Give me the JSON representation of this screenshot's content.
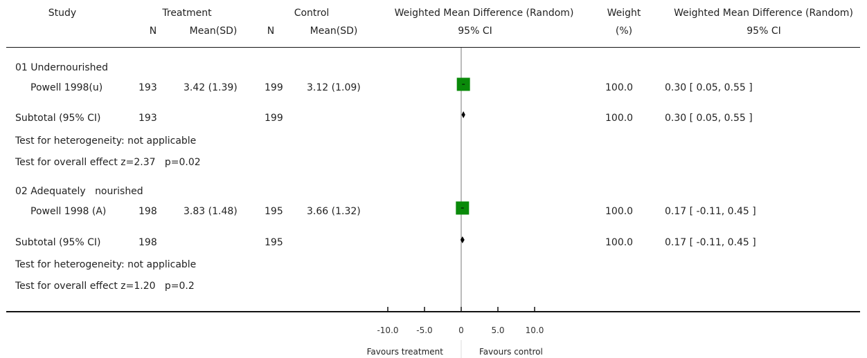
{
  "headers": {
    "study": "Study",
    "treatment": "Treatment",
    "control": "Control",
    "wmd": "Weighted Mean Difference (Random)",
    "weight": "Weight",
    "wmd2": "Weighted Mean Difference (Random)",
    "n": "N",
    "mean_sd": "Mean(SD)",
    "n2": "N",
    "mean_sd2": "Mean(SD)",
    "ci": "95% CI",
    "pct": "(%)",
    "ci2": "95% CI"
  },
  "groups": [
    {
      "title": "01 Undernourished",
      "study": {
        "name": "Powell 1998(u)",
        "tn": "193",
        "tmean": "3.42 (1.39)",
        "cn": "199",
        "cmean": "3.12 (1.09)",
        "weight": "100.0",
        "ci_text": "0.30 [ 0.05, 0.55 ]"
      },
      "subtotal": {
        "label": "Subtotal (95% CI)",
        "tn": "193",
        "cn": "199",
        "weight": "100.0",
        "ci_text": "0.30 [ 0.05, 0.55 ]"
      },
      "heterogeneity": "Test for heterogeneity: not applicable",
      "overall": "Test for overall effect z=2.37   p=0.02"
    },
    {
      "title": "02 Adequately   nourished",
      "study": {
        "name": "Powell 1998 (A)",
        "tn": "198",
        "tmean": "3.83 (1.48)",
        "cn": "195",
        "cmean": "3.66 (1.32)",
        "weight": "100.0",
        "ci_text": "0.17 [ -0.11, 0.45 ]"
      },
      "subtotal": {
        "label": "Subtotal (95% CI)",
        "tn": "198",
        "cn": "195",
        "weight": "100.0",
        "ci_text": "0.17 [ -0.11, 0.45 ]"
      },
      "heterogeneity": "Test for heterogeneity: not applicable",
      "overall": "Test for overall effect z=1.20   p=0.2"
    }
  ],
  "axis": {
    "favours_left": "Favours treatment",
    "favours_right": "Favours control"
  },
  "chart_data": {
    "type": "forest",
    "xlim": [
      -10,
      10
    ],
    "ticks": [
      -10,
      -5,
      0,
      5,
      10
    ],
    "tick_labels": [
      "-10.0",
      "-5.0",
      "0",
      "5.0",
      "10.0"
    ],
    "studies": [
      {
        "name": "Powell 1998(u)",
        "estimate": 0.3,
        "lower": 0.05,
        "upper": 0.55,
        "weight": 100.0
      },
      {
        "name": "Powell 1998 (A)",
        "estimate": 0.17,
        "lower": -0.11,
        "upper": 0.45,
        "weight": 100.0
      }
    ],
    "subtotals": [
      {
        "label": "Subtotal (95% CI)",
        "estimate": 0.3,
        "lower": 0.05,
        "upper": 0.55
      },
      {
        "label": "Subtotal (95% CI)",
        "estimate": 0.17,
        "lower": -0.11,
        "upper": 0.45
      }
    ],
    "marker_color": "#0a8a0a",
    "diamond_color": "#000000"
  }
}
